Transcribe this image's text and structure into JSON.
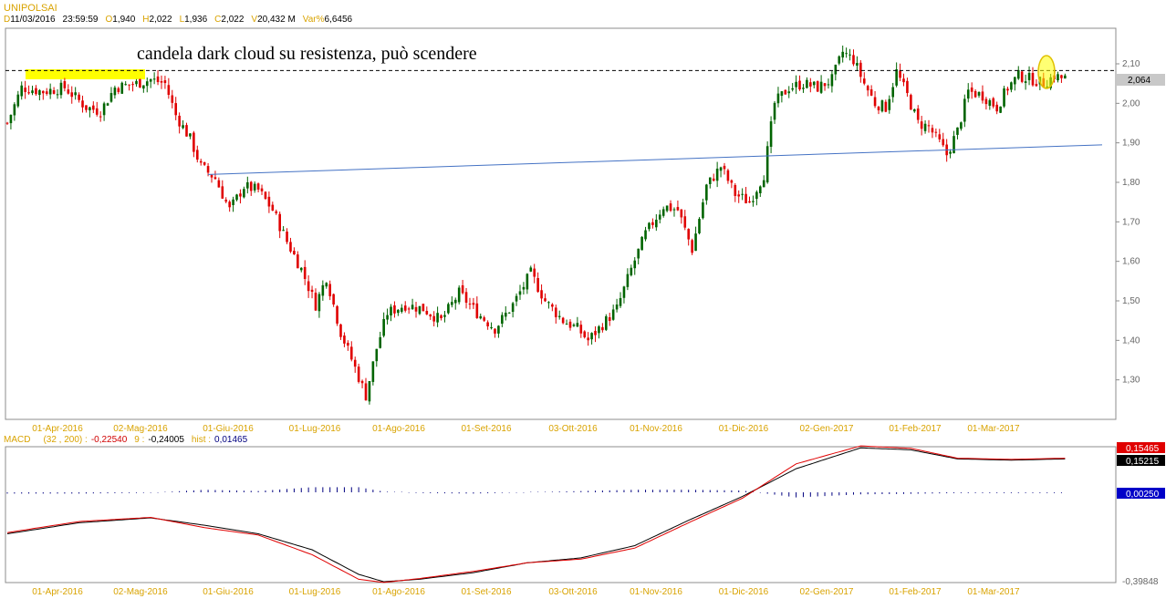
{
  "header": {
    "symbol": "UNIPOLSAI",
    "date_key": "D",
    "date": "11/03/2016",
    "time": "23:59:59",
    "open_key": "O",
    "open": "1,940",
    "high_key": "H",
    "high": "2,022",
    "low_key": "L",
    "low": "1,936",
    "close_key": "C",
    "close": "2,022",
    "volume_key": "V",
    "volume": "20,432 M",
    "var_key": "Var%",
    "var": "6,6456"
  },
  "macd_header": {
    "label": "MACD",
    "params": "(32 , 200) :",
    "macd_value": "-0,22540",
    "signal_label": "9 :",
    "signal_value": "-0,24005",
    "hist_label": "hist :",
    "hist_value": "0,01465"
  },
  "colors": {
    "up_candle": "#006400",
    "down_candle": "#e00000",
    "trendline": "#4472c4",
    "annotation_highlight": "#ffff00",
    "macd_line": "#000000",
    "signal_line": "#e00000",
    "histogram": "#000080",
    "date_labels": "#d9a300"
  },
  "chart_data": [
    {
      "type": "candlestick",
      "annotation": "candela dark cloud su resistenza, può scendere",
      "y_ticks": [
        "2,10",
        "2,00",
        "1,90",
        "1,80",
        "1,70",
        "1,60",
        "1,50",
        "1,40",
        "1,30"
      ],
      "y_tick_values": [
        2.1,
        2.0,
        1.9,
        1.8,
        1.7,
        1.6,
        1.5,
        1.4,
        1.3
      ],
      "ylim": [
        1.2,
        2.19
      ],
      "x_ticks": [
        "01-Apr-2016",
        "02-Mag-2016",
        "01-Giu-2016",
        "01-Lug-2016",
        "01-Ago-2016",
        "01-Set-2016",
        "03-Ott-2016",
        "01-Nov-2016",
        "01-Dic-2016",
        "02-Gen-2017",
        "01-Feb-2017",
        "01-Mar-2017"
      ],
      "last_price_label": "2,064",
      "last_price": 2.064,
      "resistance_level": 2.083,
      "trendline": {
        "start": {
          "x": "02-Giu-2016",
          "y": 1.82
        },
        "end": {
          "x": "27-Mar-2017",
          "y": 1.895
        }
      },
      "close_path": [
        [
          0,
          1.95
        ],
        [
          4,
          2.04
        ],
        [
          10,
          2.03
        ],
        [
          16,
          2.04
        ],
        [
          22,
          1.99
        ],
        [
          26,
          1.98
        ],
        [
          30,
          2.04
        ],
        [
          36,
          2.05
        ],
        [
          40,
          2.06
        ],
        [
          44,
          2.05
        ],
        [
          47,
          1.97
        ],
        [
          51,
          1.91
        ],
        [
          54,
          1.84
        ],
        [
          58,
          1.81
        ],
        [
          62,
          1.73
        ],
        [
          66,
          1.79
        ],
        [
          70,
          1.78
        ],
        [
          74,
          1.73
        ],
        [
          78,
          1.65
        ],
        [
          82,
          1.58
        ],
        [
          86,
          1.49
        ],
        [
          89,
          1.56
        ],
        [
          93,
          1.42
        ],
        [
          97,
          1.33
        ],
        [
          100,
          1.26
        ],
        [
          103,
          1.38
        ],
        [
          106,
          1.47
        ],
        [
          111,
          1.49
        ],
        [
          116,
          1.48
        ],
        [
          121,
          1.45
        ],
        [
          126,
          1.52
        ],
        [
          131,
          1.47
        ],
        [
          136,
          1.43
        ],
        [
          141,
          1.49
        ],
        [
          146,
          1.57
        ],
        [
          150,
          1.5
        ],
        [
          155,
          1.45
        ],
        [
          159,
          1.43
        ],
        [
          162,
          1.4
        ],
        [
          166,
          1.44
        ],
        [
          170,
          1.48
        ],
        [
          174,
          1.58
        ],
        [
          178,
          1.67
        ],
        [
          183,
          1.74
        ],
        [
          187,
          1.73
        ],
        [
          191,
          1.63
        ],
        [
          195,
          1.79
        ],
        [
          199,
          1.84
        ],
        [
          203,
          1.77
        ],
        [
          207,
          1.75
        ],
        [
          211,
          1.82
        ],
        [
          214,
          2.0
        ],
        [
          218,
          2.04
        ],
        [
          222,
          2.05
        ],
        [
          226,
          2.04
        ],
        [
          230,
          2.06
        ],
        [
          233,
          2.13
        ],
        [
          236,
          2.11
        ],
        [
          239,
          2.05
        ],
        [
          242,
          2.0
        ],
        [
          245,
          1.99
        ],
        [
          248,
          2.08
        ],
        [
          251,
          2.02
        ],
        [
          254,
          1.95
        ],
        [
          257,
          1.94
        ],
        [
          260,
          1.9
        ],
        [
          262,
          1.87
        ],
        [
          265,
          1.93
        ],
        [
          268,
          2.03
        ],
        [
          272,
          2.02
        ],
        [
          276,
          1.99
        ],
        [
          279,
          2.04
        ],
        [
          282,
          2.07
        ],
        [
          286,
          2.06
        ],
        [
          289,
          2.05
        ],
        [
          292,
          2.07
        ],
        [
          294,
          2.064
        ]
      ]
    },
    {
      "type": "line",
      "name": "MACD",
      "y_label_top_signal": "0,15465",
      "y_label_top_macd": "0,15215",
      "y_label_hist": "0,00250",
      "y_label_min": "-0,39848",
      "ylim": [
        -0.39848,
        0.15465
      ],
      "x_ticks": [
        "01-Apr-2016",
        "02-Mag-2016",
        "01-Giu-2016",
        "01-Lug-2016",
        "01-Ago-2016",
        "01-Set-2016",
        "03-Ott-2016",
        "01-Nov-2016",
        "01-Dic-2016",
        "02-Gen-2017",
        "01-Feb-2017",
        "01-Mar-2017"
      ],
      "series": [
        {
          "name": "MACD",
          "points": [
            [
              0,
              -0.2
            ],
            [
              20,
              -0.155
            ],
            [
              40,
              -0.135
            ],
            [
              55,
              -0.165
            ],
            [
              70,
              -0.2
            ],
            [
              85,
              -0.265
            ],
            [
              98,
              -0.365
            ],
            [
              105,
              -0.395
            ],
            [
              115,
              -0.385
            ],
            [
              130,
              -0.358
            ],
            [
              145,
              -0.318
            ],
            [
              160,
              -0.298
            ],
            [
              175,
              -0.248
            ],
            [
              190,
              -0.145
            ],
            [
              205,
              -0.048
            ],
            [
              220,
              0.065
            ],
            [
              238,
              0.15
            ],
            [
              252,
              0.142
            ],
            [
              265,
              0.105
            ],
            [
              280,
              0.1
            ],
            [
              295,
              0.105
            ]
          ]
        },
        {
          "name": "Signal",
          "points": [
            [
              0,
              -0.195
            ],
            [
              20,
              -0.15
            ],
            [
              40,
              -0.133
            ],
            [
              55,
              -0.175
            ],
            [
              70,
              -0.205
            ],
            [
              85,
              -0.285
            ],
            [
              98,
              -0.385
            ],
            [
              105,
              -0.398
            ],
            [
              115,
              -0.382
            ],
            [
              130,
              -0.353
            ],
            [
              145,
              -0.318
            ],
            [
              160,
              -0.303
            ],
            [
              175,
              -0.258
            ],
            [
              190,
              -0.155
            ],
            [
              205,
              -0.055
            ],
            [
              220,
              0.085
            ],
            [
              238,
              0.158
            ],
            [
              252,
              0.148
            ],
            [
              265,
              0.108
            ],
            [
              280,
              0.103
            ],
            [
              295,
              0.108
            ]
          ]
        }
      ]
    }
  ]
}
